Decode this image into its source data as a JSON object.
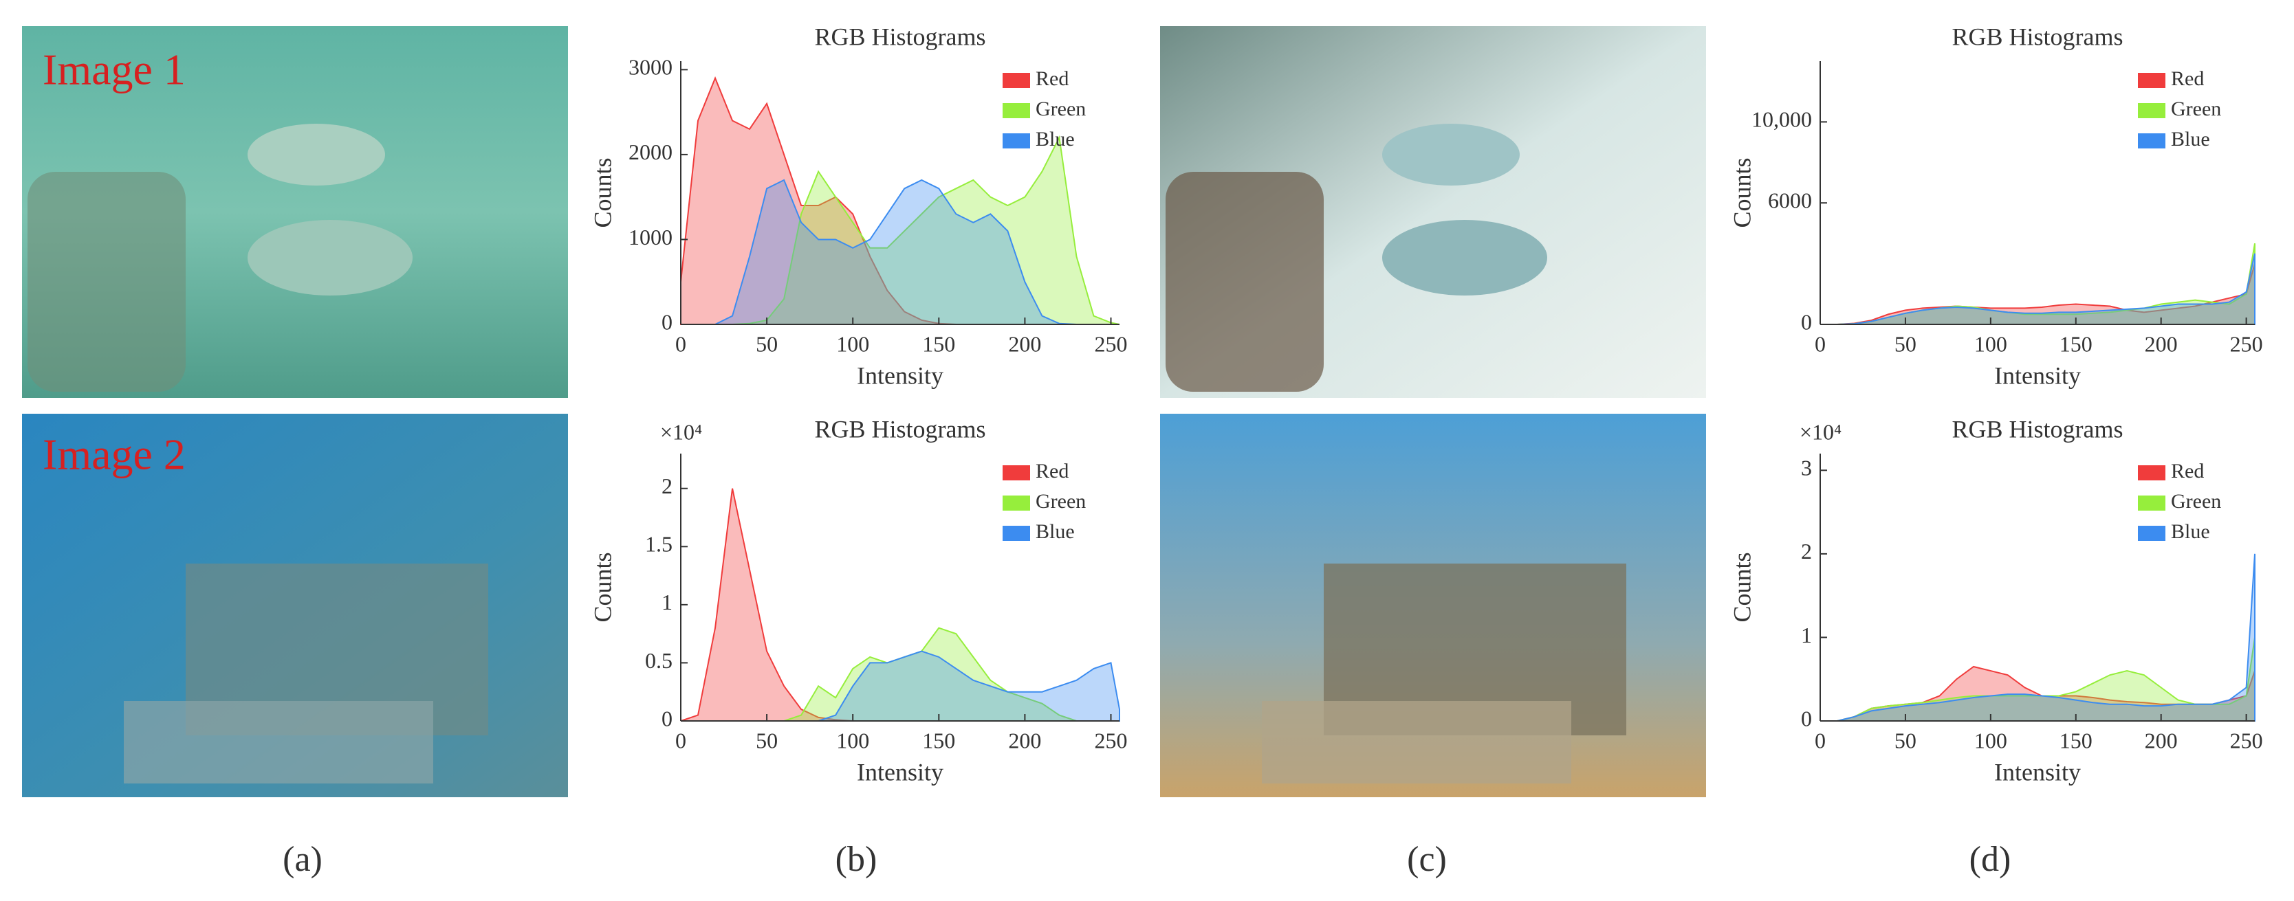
{
  "images": [
    {
      "label": "Image 1"
    },
    {
      "label": "Image 2"
    }
  ],
  "panel_labels": [
    "(a)",
    "(b)",
    "(c)",
    "(d)"
  ],
  "chart_data": [
    {
      "type": "area",
      "title": "RGB Histograms",
      "xlabel": "Intensity",
      "ylabel": "Counts",
      "legend": "upper right",
      "x": [
        0,
        10,
        20,
        30,
        40,
        50,
        60,
        70,
        80,
        90,
        100,
        110,
        120,
        130,
        140,
        150,
        160,
        170,
        180,
        190,
        200,
        210,
        220,
        230,
        240,
        250,
        255
      ],
      "xlim": [
        0,
        255
      ],
      "xticks": [
        0,
        50,
        100,
        150,
        200,
        250
      ],
      "ylim": [
        0,
        3100
      ],
      "yticks": [
        0,
        1000,
        2000,
        3000
      ],
      "series": [
        {
          "name": "Red",
          "color": "#f03c3c",
          "values": [
            500,
            2400,
            2900,
            2400,
            2300,
            2600,
            2000,
            1400,
            1400,
            1500,
            1300,
            800,
            400,
            150,
            50,
            10,
            0,
            0,
            0,
            0,
            0,
            0,
            0,
            0,
            0,
            0,
            0
          ]
        },
        {
          "name": "Green",
          "color": "#96ee3c",
          "values": [
            0,
            0,
            0,
            0,
            10,
            50,
            300,
            1300,
            1800,
            1500,
            1200,
            900,
            900,
            1100,
            1300,
            1500,
            1600,
            1700,
            1500,
            1400,
            1500,
            1800,
            2200,
            800,
            100,
            20,
            0
          ]
        },
        {
          "name": "Blue",
          "color": "#3c8cf0",
          "values": [
            0,
            0,
            0,
            100,
            800,
            1600,
            1700,
            1200,
            1000,
            1000,
            900,
            1000,
            1300,
            1600,
            1700,
            1600,
            1300,
            1200,
            1300,
            1100,
            500,
            100,
            10,
            0,
            0,
            0,
            0
          ]
        }
      ]
    },
    {
      "type": "area",
      "title": "RGB Histograms",
      "xlabel": "Intensity",
      "ylabel": "Counts",
      "y_multiplier": "×10⁴",
      "legend": "upper right",
      "x": [
        0,
        10,
        20,
        30,
        40,
        50,
        60,
        70,
        80,
        90,
        100,
        110,
        120,
        130,
        140,
        150,
        160,
        170,
        180,
        190,
        200,
        210,
        220,
        230,
        240,
        250,
        255
      ],
      "xlim": [
        0,
        255
      ],
      "xticks": [
        0,
        50,
        100,
        150,
        200,
        250
      ],
      "ylim": [
        0,
        2.3
      ],
      "yticks": [
        0,
        0.5,
        1,
        1.5,
        2
      ],
      "series": [
        {
          "name": "Red",
          "color": "#f03c3c",
          "values": [
            0,
            0.05,
            0.8,
            2.0,
            1.3,
            0.6,
            0.3,
            0.1,
            0.03,
            0.01,
            0,
            0,
            0,
            0,
            0,
            0,
            0,
            0,
            0,
            0,
            0,
            0,
            0,
            0,
            0,
            0,
            0
          ]
        },
        {
          "name": "Green",
          "color": "#96ee3c",
          "values": [
            0,
            0,
            0,
            0,
            0,
            0,
            0,
            0.05,
            0.3,
            0.2,
            0.45,
            0.55,
            0.5,
            0.55,
            0.6,
            0.8,
            0.75,
            0.55,
            0.35,
            0.25,
            0.2,
            0.15,
            0.05,
            0,
            0,
            0,
            0
          ]
        },
        {
          "name": "Blue",
          "color": "#3c8cf0",
          "values": [
            0,
            0,
            0,
            0,
            0,
            0,
            0,
            0,
            0,
            0.05,
            0.3,
            0.5,
            0.5,
            0.55,
            0.6,
            0.55,
            0.45,
            0.35,
            0.3,
            0.25,
            0.25,
            0.25,
            0.3,
            0.35,
            0.45,
            0.5,
            0.1
          ]
        }
      ]
    },
    {
      "type": "area",
      "title": "RGB Histograms",
      "xlabel": "Intensity",
      "ylabel": "Counts",
      "legend": "upper right",
      "x": [
        0,
        10,
        20,
        30,
        40,
        50,
        60,
        70,
        80,
        90,
        100,
        110,
        120,
        130,
        140,
        150,
        160,
        170,
        180,
        190,
        200,
        210,
        220,
        230,
        240,
        250,
        255
      ],
      "xlim": [
        0,
        255
      ],
      "xticks": [
        0,
        50,
        100,
        150,
        200,
        250
      ],
      "ylim": [
        0,
        13000
      ],
      "yticks": [
        0,
        6000,
        {
          "value": 10000,
          "label": "10,000"
        }
      ],
      "series": [
        {
          "name": "Red",
          "color": "#f03c3c",
          "values": [
            0,
            0,
            50,
            200,
            500,
            700,
            800,
            850,
            900,
            850,
            800,
            800,
            800,
            850,
            950,
            1000,
            950,
            900,
            700,
            600,
            700,
            800,
            900,
            1100,
            1300,
            1500,
            3000
          ]
        },
        {
          "name": "Green",
          "color": "#96ee3c",
          "values": [
            0,
            0,
            30,
            150,
            350,
            550,
            700,
            800,
            900,
            850,
            700,
            600,
            500,
            500,
            500,
            500,
            550,
            600,
            700,
            800,
            1000,
            1100,
            1200,
            1100,
            1000,
            1500,
            4000
          ]
        },
        {
          "name": "Blue",
          "color": "#3c8cf0",
          "values": [
            0,
            0,
            30,
            150,
            350,
            550,
            700,
            800,
            850,
            800,
            700,
            600,
            550,
            550,
            600,
            600,
            650,
            700,
            750,
            800,
            900,
            1000,
            1000,
            1000,
            1100,
            1600,
            3500
          ]
        }
      ]
    },
    {
      "type": "area",
      "title": "RGB Histograms",
      "xlabel": "Intensity",
      "ylabel": "Counts",
      "y_multiplier": "×10⁴",
      "legend": "upper right",
      "x": [
        0,
        10,
        20,
        30,
        40,
        50,
        60,
        70,
        80,
        90,
        100,
        110,
        120,
        130,
        140,
        150,
        160,
        170,
        180,
        190,
        200,
        210,
        220,
        230,
        240,
        250,
        255
      ],
      "xlim": [
        0,
        255
      ],
      "xticks": [
        0,
        50,
        100,
        150,
        200,
        250
      ],
      "ylim": [
        0,
        3.2
      ],
      "yticks": [
        0,
        1,
        2,
        3
      ],
      "series": [
        {
          "name": "Red",
          "color": "#f03c3c",
          "values": [
            0,
            0,
            0.05,
            0.15,
            0.18,
            0.2,
            0.22,
            0.3,
            0.5,
            0.65,
            0.6,
            0.55,
            0.4,
            0.3,
            0.3,
            0.3,
            0.28,
            0.25,
            0.23,
            0.22,
            0.2,
            0.2,
            0.2,
            0.2,
            0.25,
            0.3,
            0.6
          ]
        },
        {
          "name": "Green",
          "color": "#96ee3c",
          "values": [
            0,
            0,
            0.05,
            0.15,
            0.18,
            0.2,
            0.22,
            0.25,
            0.28,
            0.3,
            0.3,
            0.3,
            0.3,
            0.3,
            0.3,
            0.35,
            0.45,
            0.55,
            0.6,
            0.55,
            0.4,
            0.25,
            0.2,
            0.2,
            0.2,
            0.3,
            1.0
          ]
        },
        {
          "name": "Blue",
          "color": "#3c8cf0",
          "values": [
            0,
            0,
            0.05,
            0.12,
            0.15,
            0.18,
            0.2,
            0.22,
            0.25,
            0.28,
            0.3,
            0.32,
            0.32,
            0.3,
            0.28,
            0.25,
            0.22,
            0.2,
            0.2,
            0.18,
            0.18,
            0.2,
            0.2,
            0.2,
            0.25,
            0.4,
            2.0
          ]
        }
      ]
    }
  ]
}
